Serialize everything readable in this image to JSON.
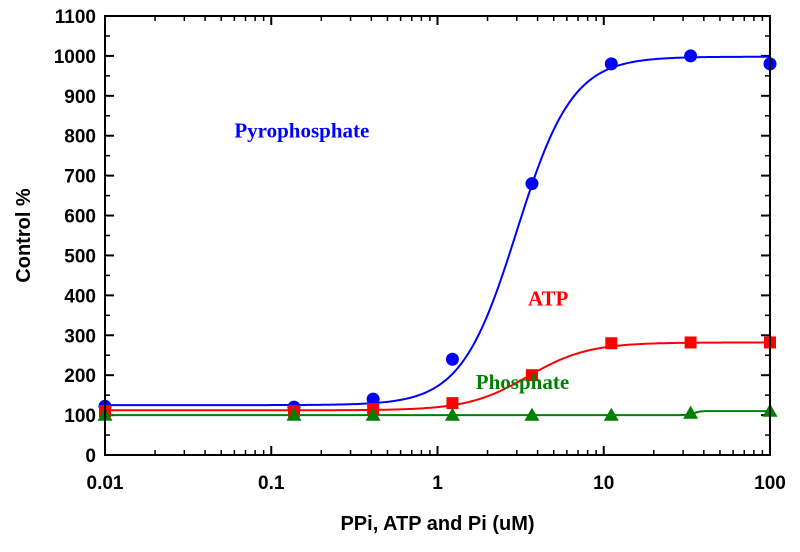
{
  "chart_data": {
    "type": "scatter",
    "xscale": "log",
    "xlim": [
      0.01,
      100
    ],
    "ylim": [
      0,
      1100
    ],
    "xlabel": "PPi, ATP and Pi (uM)",
    "ylabel": "Control %",
    "xticks": [
      {
        "value": 0.01,
        "label": "0.01"
      },
      {
        "value": 0.1,
        "label": "0.1"
      },
      {
        "value": 1,
        "label": "1"
      },
      {
        "value": 10,
        "label": "10"
      },
      {
        "value": 100,
        "label": "100"
      }
    ],
    "yticks": [
      {
        "value": 0,
        "label": "0"
      },
      {
        "value": 100,
        "label": "100"
      },
      {
        "value": 200,
        "label": "200"
      },
      {
        "value": 300,
        "label": "300"
      },
      {
        "value": 400,
        "label": "400"
      },
      {
        "value": 500,
        "label": "500"
      },
      {
        "value": 600,
        "label": "600"
      },
      {
        "value": 700,
        "label": "700"
      },
      {
        "value": 800,
        "label": "800"
      },
      {
        "value": 900,
        "label": "900"
      },
      {
        "value": 1000,
        "label": "1000"
      },
      {
        "value": 1100,
        "label": "1100"
      }
    ],
    "series": [
      {
        "name": "Pyrophosphate",
        "color": "#0000ff",
        "marker": "circle",
        "x": [
          0.01,
          0.137,
          0.41,
          1.23,
          3.7,
          11.1,
          33.3,
          100
        ],
        "y": [
          122,
          120,
          140,
          240,
          680,
          980,
          1000,
          980
        ],
        "fit": {
          "bottom": 125,
          "top": 998,
          "ec50": 3.0,
          "hill": 2.6
        }
      },
      {
        "name": "ATP",
        "color": "#ff0000",
        "marker": "square",
        "x": [
          0.01,
          0.137,
          0.41,
          1.23,
          3.7,
          11.1,
          33.3,
          100
        ],
        "y": [
          110,
          110,
          115,
          130,
          200,
          280,
          282,
          282
        ],
        "fit": {
          "bottom": 112,
          "top": 282,
          "ec50": 3.5,
          "hill": 2.4
        }
      },
      {
        "name": "Phosphate",
        "color": "#008000",
        "marker": "triangle",
        "x": [
          0.01,
          0.137,
          0.41,
          1.23,
          3.7,
          11.1,
          33.3,
          100
        ],
        "y": [
          100,
          100,
          100,
          100,
          100,
          100,
          105,
          110
        ],
        "fit": {
          "bottom": 100,
          "top": 110,
          "ec50": 35,
          "hill": 25
        }
      }
    ],
    "annotations": [
      {
        "text": "Pyrophosphate",
        "series": "Pyrophosphate",
        "x": 0.06,
        "y": 795,
        "anchor": "start"
      },
      {
        "text": "ATP",
        "series": "ATP",
        "x": 3.5,
        "y": 375,
        "anchor": "start"
      },
      {
        "text": "Phosphate",
        "series": "Phosphate",
        "x": 1.7,
        "y": 165,
        "anchor": "start"
      }
    ]
  }
}
